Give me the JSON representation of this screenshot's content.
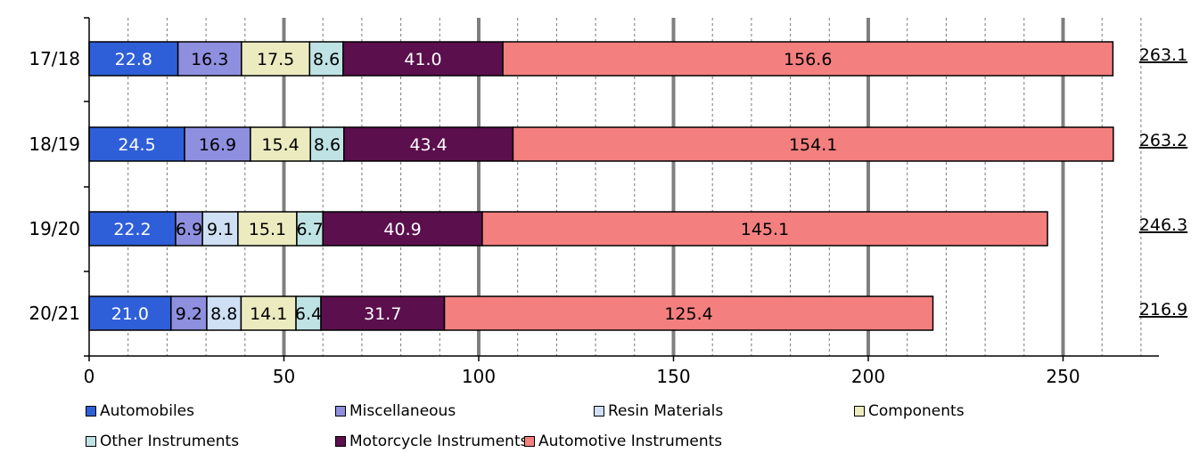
{
  "chart_data": {
    "type": "bar",
    "orientation": "horizontal",
    "stacked": true,
    "title": "",
    "xlabel": "",
    "ylabel": "",
    "categories": [
      "17/18",
      "18/19",
      "19/20",
      "20/21"
    ],
    "xlim": [
      0,
      275
    ],
    "xticks": [
      0,
      50,
      100,
      150,
      200,
      250
    ],
    "grid": true,
    "legend_position": "bottom",
    "series": [
      {
        "name": "Automobiles",
        "color": "#2f5fd8",
        "label_color": "#ffffff",
        "values": [
          22.8,
          24.5,
          22.2,
          21.0
        ]
      },
      {
        "name": "Miscellaneous",
        "color": "#8f8fe0",
        "label_color": "#000000",
        "values": [
          16.3,
          16.9,
          6.9,
          9.2
        ]
      },
      {
        "name": "Resin Materials",
        "color": "#cfe0f4",
        "label_color": "#000000",
        "values": [
          null,
          null,
          9.1,
          8.8
        ]
      },
      {
        "name": "Components",
        "color": "#ecebc0",
        "label_color": "#000000",
        "values": [
          17.5,
          15.4,
          15.1,
          14.1
        ]
      },
      {
        "name": "Other Instruments",
        "color": "#bfe3e4",
        "label_color": "#000000",
        "values": [
          8.6,
          8.6,
          6.7,
          6.4
        ]
      },
      {
        "name": "Motorcycle Instruments",
        "color": "#5b0f4d",
        "label_color": "#ffffff",
        "values": [
          41.0,
          43.4,
          40.9,
          31.7
        ]
      },
      {
        "name": "Automotive Instruments",
        "color": "#f47f7f",
        "label_color": "#000000",
        "values": [
          156.6,
          154.1,
          145.1,
          125.4
        ]
      }
    ],
    "totals": [
      "263.1",
      "263.2",
      "246.3",
      "216.9"
    ]
  }
}
